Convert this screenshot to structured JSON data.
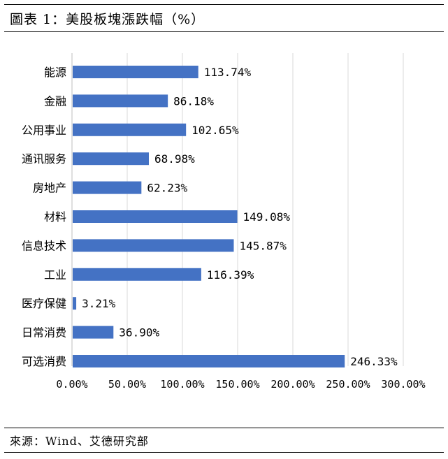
{
  "header": {
    "title": "圖表 1：美股板塊漲跌幅（%）"
  },
  "footer": {
    "source": "來源：Wind、艾德研究部"
  },
  "colors": {
    "bar": "#4472C4",
    "grid": "#d9d9d9",
    "axis": "#bfbfbf"
  },
  "chart_data": {
    "type": "bar",
    "orientation": "horizontal",
    "title": "",
    "xlabel": "",
    "ylabel": "",
    "categories": [
      "能源",
      "金融",
      "公用事业",
      "通讯服务",
      "房地产",
      "材料",
      "信息技术",
      "工业",
      "医疗保健",
      "日常消费",
      "可选消费"
    ],
    "values": [
      113.74,
      86.18,
      102.65,
      68.98,
      62.23,
      149.08,
      145.87,
      116.39,
      3.21,
      36.9,
      246.33
    ],
    "value_labels": [
      "113.74%",
      "86.18%",
      "102.65%",
      "68.98%",
      "62.23%",
      "149.08%",
      "145.87%",
      "116.39%",
      "3.21%",
      "36.90%",
      "246.33%"
    ],
    "xlim": [
      0,
      300
    ],
    "x_ticks": [
      0,
      50,
      100,
      150,
      200,
      250,
      300
    ],
    "x_tick_labels": [
      "0.00%",
      "50.00%",
      "100.00%",
      "150.00%",
      "200.00%",
      "250.00%",
      "300.00%"
    ],
    "grid": true,
    "legend": "none"
  }
}
